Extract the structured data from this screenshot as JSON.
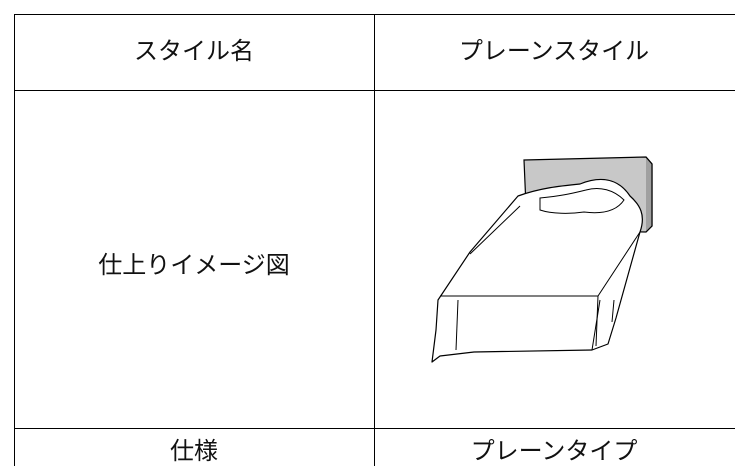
{
  "table": {
    "rows": [
      [
        "スタイル名",
        "プレーンスタイル"
      ],
      [
        "仕上りイメージ図"
      ],
      [
        "仕様",
        "プレーンタイプ"
      ]
    ]
  }
}
